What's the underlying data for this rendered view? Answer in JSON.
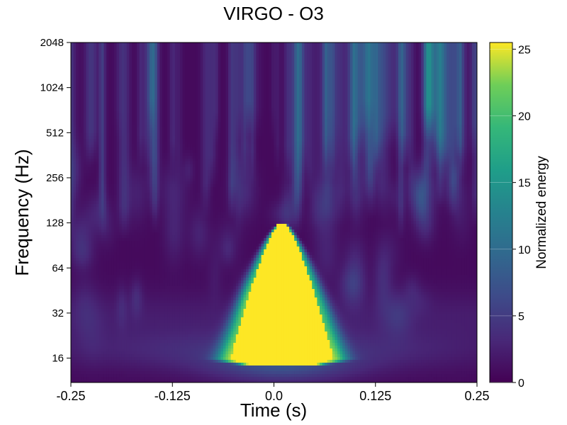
{
  "chart_data": {
    "type": "heatmap",
    "title": "VIRGO - O3",
    "xlabel": "Time (s)",
    "ylabel": "Frequency (Hz)",
    "xlim": [
      -0.25,
      0.25
    ],
    "ylim": [
      11,
      2048
    ],
    "yscale": "log2",
    "x_ticks": [
      {
        "value": -0.25,
        "label": "-0.25"
      },
      {
        "value": -0.125,
        "label": "-0.125"
      },
      {
        "value": 0,
        "label": "0.0"
      },
      {
        "value": 0.125,
        "label": "0.125"
      },
      {
        "value": 0.25,
        "label": "0.25"
      }
    ],
    "y_ticks": [
      {
        "value": 16,
        "label": "16"
      },
      {
        "value": 32,
        "label": "32"
      },
      {
        "value": 64,
        "label": "64"
      },
      {
        "value": 128,
        "label": "128"
      },
      {
        "value": 256,
        "label": "256"
      },
      {
        "value": 512,
        "label": "512"
      },
      {
        "value": 1024,
        "label": "1024"
      },
      {
        "value": 2048,
        "label": "2048"
      }
    ],
    "colorbar": {
      "label": "Normalized energy",
      "range": [
        0,
        25.5
      ],
      "colormap": "viridis",
      "ticks": [
        {
          "value": 0,
          "label": "0"
        },
        {
          "value": 5,
          "label": "5"
        },
        {
          "value": 10,
          "label": "10"
        },
        {
          "value": 15,
          "label": "15"
        },
        {
          "value": 20,
          "label": "20"
        },
        {
          "value": 25,
          "label": "25"
        }
      ]
    },
    "event": {
      "peak_time": 0.01,
      "freq_low": 14,
      "freq_high": 125,
      "saturated_energy": 25.5
    },
    "grid": false
  }
}
